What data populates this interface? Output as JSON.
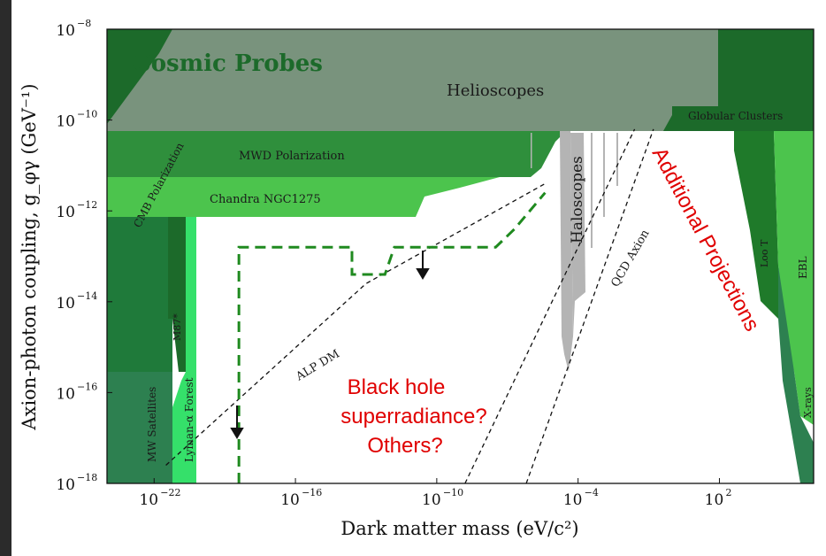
{
  "chart_data": {
    "type": "area",
    "title": "",
    "xlabel": "Dark matter mass (eV/c²)",
    "ylabel": "Axion-photon coupling, g_φγ (GeV⁻¹)",
    "xscale": "log",
    "yscale": "log",
    "xlim_log10": [
      -24,
      6
    ],
    "ylim_log10": [
      -18,
      -8
    ],
    "x_ticks_log10": [
      -22,
      -16,
      -10,
      -4,
      2
    ],
    "y_ticks_log10": [
      -18,
      -16,
      -14,
      -12,
      -10,
      -8
    ],
    "tick_base": "10",
    "colors": {
      "dark_green": "#1c6a2a",
      "mid_green": "#2f8f3c",
      "light_green": "#4cc44d",
      "bright_green": "#35e06a",
      "teal": "#2d8050",
      "grey_overlay": "#8a9a8c",
      "haloscope_grey": "#b4b4b4",
      "projection_dash": "#1f8a1f",
      "annotation_red": "#e00000"
    },
    "regions": [
      {
        "label": "Cosmic Probes",
        "style": "large bold"
      },
      {
        "label": "Helioscopes"
      },
      {
        "label": "Globular Clusters"
      },
      {
        "label": "CMB Polarization",
        "rotation": "vertical"
      },
      {
        "label": "MWD Polarization"
      },
      {
        "label": "Chandra NGC1275"
      },
      {
        "label": "M87*",
        "rotation": "vertical"
      },
      {
        "label": "MW Satellites",
        "rotation": "vertical"
      },
      {
        "label": "Lyman-α Forest",
        "rotation": "vertical"
      },
      {
        "label": "Haloscopes",
        "rotation": "vertical"
      },
      {
        "label": "Loo T",
        "rotation": "vertical"
      },
      {
        "label": "EBL",
        "rotation": "vertical"
      },
      {
        "label": "X-rays",
        "rotation": "vertical"
      }
    ],
    "lines": [
      {
        "label": "ALP DM",
        "style": "dashed",
        "points_log10": [
          [
            -21.5,
            -17.6
          ],
          [
            -13,
            -13.6
          ],
          [
            -5.4,
            -11.4
          ]
        ]
      },
      {
        "label": "QCD Axion",
        "style": "dashed",
        "points_log10": [
          [
            -6.2,
            -18
          ],
          [
            -0.8,
            -10.2
          ]
        ]
      },
      {
        "label": "",
        "style": "dashed",
        "points_log10": [
          [
            -8.8,
            -18
          ],
          [
            -1.6,
            -10.2
          ]
        ]
      }
    ],
    "projection": {
      "style": "thick dashed green",
      "points_log10": [
        [
          -18.4,
          -18
        ],
        [
          -18.4,
          -12.8
        ],
        [
          -13.6,
          -12.8
        ],
        [
          -13.6,
          -13.4
        ],
        [
          -12.2,
          -13.4
        ],
        [
          -11.8,
          -12.8
        ],
        [
          -7.5,
          -12.8
        ],
        [
          -6.7,
          -12.4
        ],
        [
          -5.4,
          -11.6
        ]
      ]
    },
    "annotations": [
      {
        "text": "Black hole",
        "color": "red"
      },
      {
        "text": "superradiance?",
        "color": "red"
      },
      {
        "text": "Others?",
        "color": "red"
      },
      {
        "text": "Additional Projections",
        "color": "red",
        "rotation": "diagonal"
      }
    ]
  }
}
